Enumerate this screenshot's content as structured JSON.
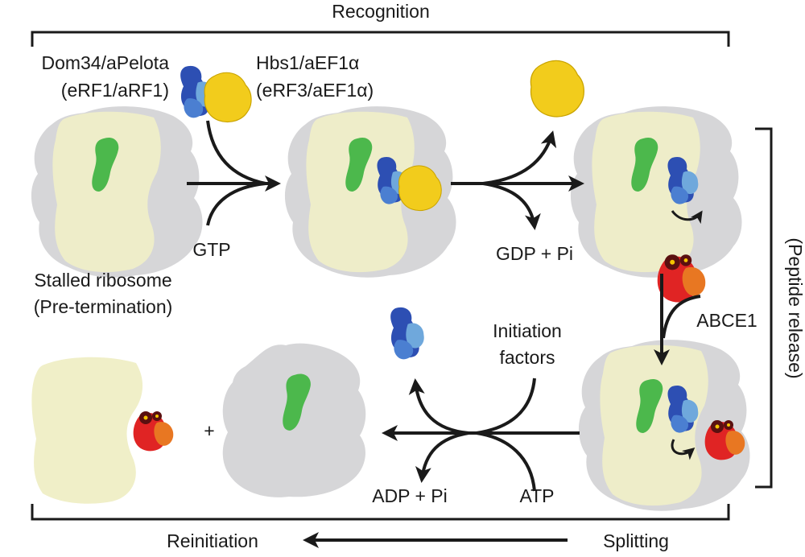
{
  "labels": {
    "recognition": "Recognition",
    "dom34_line1": "Dom34/aPelota",
    "dom34_line2": "(eRF1/aRF1)",
    "hbs1_line1": "Hbs1/aEF1α",
    "hbs1_line2": "(eRF3/aEF1α)",
    "gtp": "GTP",
    "gdp_pi": "GDP + Pi",
    "stalled_line1": "Stalled ribosome",
    "stalled_line2": "(Pre-termination)",
    "abce1": "ABCE1",
    "peptide_release": "(Peptide release)",
    "initiation_line1": "Initiation",
    "initiation_line2": "factors",
    "plus": "+",
    "adp_pi": "ADP + Pi",
    "atp": "ATP",
    "reinitiation": "Reinitiation",
    "splitting": "Splitting"
  },
  "colors": {
    "ribosome_grey": "#d6d6d8",
    "small_subunit": "#f0efc8",
    "dom34_green": "#4cb84c",
    "hbs1_yellow": "#f2cc1c",
    "dom34_blue_dark": "#2d4fb3",
    "dom34_blue_light": "#6fa8dc",
    "abce1_red": "#e02424",
    "abce1_orange": "#e87722",
    "iron_sulfur": "#f5c400",
    "arrow": "#1a1a1a"
  }
}
